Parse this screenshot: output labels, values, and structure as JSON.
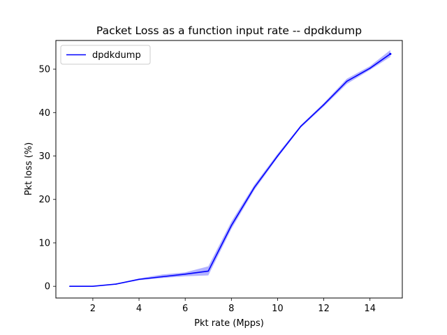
{
  "chart_data": {
    "type": "line",
    "title": "Packet Loss as a function input rate -- dpdkdump",
    "xlabel": "Pkt rate (Mpps)",
    "ylabel": "Pkt loss (%)",
    "xlim": [
      0.4,
      15.4
    ],
    "ylim": [
      -2.7,
      56.6
    ],
    "xticks": [
      2,
      4,
      6,
      8,
      10,
      12,
      14
    ],
    "yticks": [
      0,
      10,
      20,
      30,
      40,
      50
    ],
    "grid": false,
    "legend_position": "top-left",
    "series": [
      {
        "name": "dpdkdump",
        "color": "#0000ff",
        "band_color": "#0000ff",
        "x": [
          1,
          2,
          3,
          4,
          5,
          6,
          7,
          8,
          9,
          10,
          11,
          12,
          13,
          14,
          14.88
        ],
        "y": [
          0,
          0,
          0.5,
          1.6,
          2.2,
          2.8,
          3.5,
          14,
          22.8,
          30,
          36.8,
          41.8,
          47.2,
          50.2,
          53.5
        ],
        "band_lower": [
          0,
          0,
          0.4,
          1.4,
          1.9,
          2.3,
          2.5,
          13.2,
          22.2,
          29.6,
          36.5,
          41.4,
          46.6,
          49.8,
          52.8
        ],
        "band_upper": [
          0,
          0,
          0.6,
          1.8,
          2.7,
          3.2,
          4.6,
          14.9,
          23.4,
          30.5,
          37.1,
          42.2,
          47.8,
          50.7,
          54.4
        ]
      }
    ]
  }
}
